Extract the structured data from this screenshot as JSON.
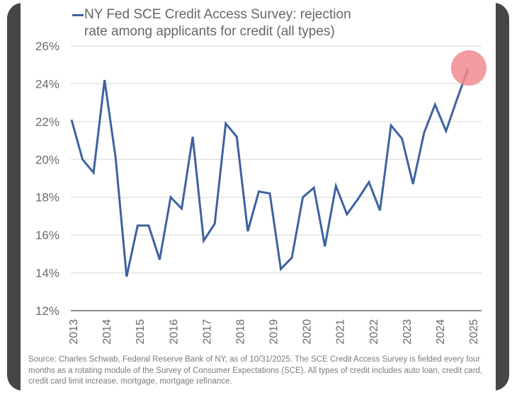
{
  "chart_data": {
    "type": "line",
    "title": "NY Fed SCE Credit Access Survey: rejection rate among applicants for credit (all types)",
    "xlabel": "",
    "ylabel": "",
    "ylim": [
      12,
      26
    ],
    "yticks": [
      12,
      14,
      16,
      18,
      20,
      22,
      24,
      26
    ],
    "ytick_labels": [
      "12%",
      "14%",
      "16%",
      "18%",
      "20%",
      "22%",
      "24%",
      "26%"
    ],
    "xtick_labels": [
      "2013",
      "2014",
      "2015",
      "2016",
      "2017",
      "2018",
      "2019",
      "2020",
      "2021",
      "2022",
      "2023",
      "2024",
      "2025"
    ],
    "grid": true,
    "legend": "top-left",
    "frequency": "every four months",
    "series": [
      {
        "name": "NY Fed SCE Credit Access Survey: rejection rate among applicants for credit (all types)",
        "color": "#3d62a0",
        "values": [
          22.1,
          20.0,
          19.3,
          24.2,
          20.1,
          13.8,
          16.5,
          16.5,
          14.7,
          18.0,
          17.4,
          21.2,
          15.7,
          16.6,
          21.9,
          21.2,
          16.2,
          18.3,
          18.2,
          14.2,
          14.8,
          18.0,
          18.5,
          15.4,
          18.6,
          17.1,
          17.9,
          18.8,
          17.3,
          21.8,
          21.1,
          18.7,
          21.4,
          22.9,
          21.5,
          23.2,
          24.8
        ]
      }
    ],
    "annotations": [
      {
        "type": "highlight-circle",
        "target": "last-point",
        "color": "#f08a8f"
      }
    ]
  },
  "legend": {
    "label": "NY Fed SCE Credit Access Survey: rejection rate among applicants for credit (all types)"
  },
  "source": "Source: Charles Schwab, Federal Reserve Bank of NY, as of 10/31/2025. The SCE Credit Access Survey is fielded every four months as a rotating module of the Survey of Consumer Expectations (SCE).  All types of credit includes auto loan, credit card, credit card limit increase, mortgage, mortgage refinance."
}
